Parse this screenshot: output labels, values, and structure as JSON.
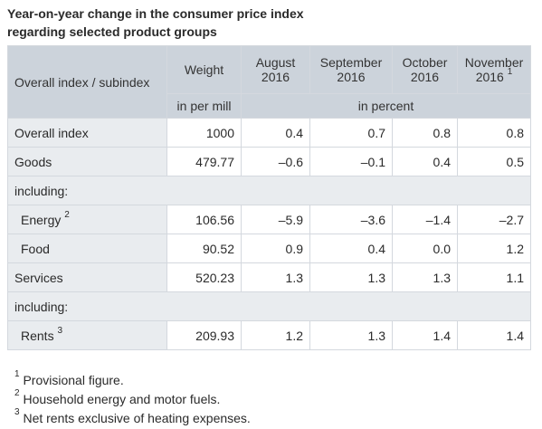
{
  "title": {
    "line1": "Year-on-year change in the consumer price index",
    "line2": "regarding selected product groups"
  },
  "table": {
    "headers": {
      "col0": "Overall index / subindex",
      "col1": "Weight",
      "col2_line1": "August",
      "col2_line2": "2016",
      "col3_line1": "September",
      "col3_line2": "2016",
      "col4_line1": "October",
      "col4_line2": "2016",
      "col5_line1": "November",
      "col5_line2": "2016",
      "col5_sup": "1",
      "unit_weight": "in per mill",
      "unit_values": "in percent"
    },
    "rows": [
      {
        "label": "Overall index",
        "sup": "",
        "weight": "1000",
        "aug": "0.4",
        "sep": "0.7",
        "oct": "0.8",
        "nov": "0.8"
      },
      {
        "label": "Goods",
        "sup": "",
        "weight": "479.77",
        "aug": "–0.6",
        "sep": "–0.1",
        "oct": "0.4",
        "nov": "0.5"
      },
      {
        "section": "including:"
      },
      {
        "label": "Energy",
        "sup": "2",
        "weight": "106.56",
        "aug": "–5.9",
        "sep": "–3.6",
        "oct": "–1.4",
        "nov": "–2.7"
      },
      {
        "label": "Food",
        "sup": "",
        "weight": "90.52",
        "aug": "0.9",
        "sep": "0.4",
        "oct": "0.0",
        "nov": "1.2"
      },
      {
        "label": "Services",
        "sup": "",
        "weight": "520.23",
        "aug": "1.3",
        "sep": "1.3",
        "oct": "1.3",
        "nov": "1.1"
      },
      {
        "section": "including:"
      },
      {
        "label": "Rents",
        "sup": "3",
        "weight": "209.93",
        "aug": "1.2",
        "sep": "1.3",
        "oct": "1.4",
        "nov": "1.4"
      }
    ]
  },
  "footnotes": [
    {
      "num": "1",
      "text": "Provisional figure."
    },
    {
      "num": "2",
      "text": "Household energy and motor fuels."
    },
    {
      "num": "3",
      "text": "Net rents exclusive of heating expenses."
    }
  ]
}
